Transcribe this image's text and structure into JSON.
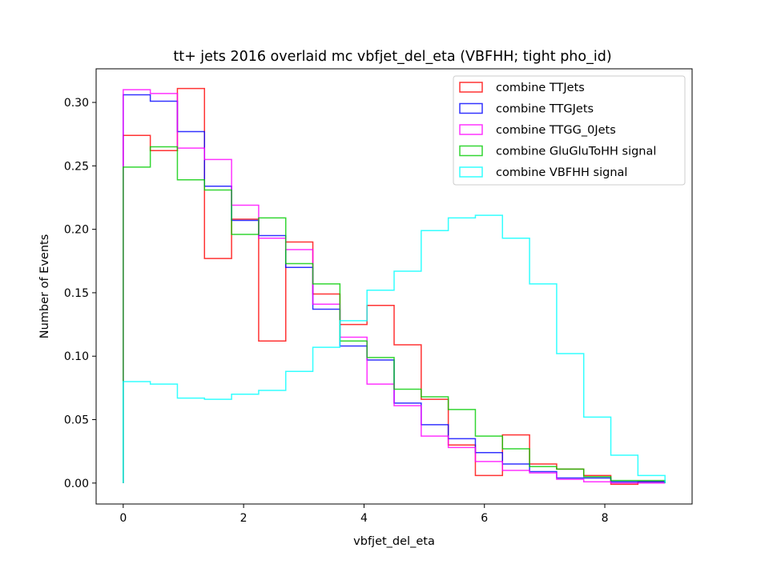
{
  "chart_data": {
    "type": "histogram-step",
    "title": "tt+ jets 2016 overlaid mc vbfjet_del_eta (VBFHH; tight pho_id)",
    "xlabel": "vbfjet_del_eta",
    "ylabel": "Number of Events",
    "xlim": [
      -0.45,
      9.45
    ],
    "ylim": [
      -0.0165,
      0.3265
    ],
    "xticks": [
      0,
      2,
      4,
      6,
      8
    ],
    "xtick_labels": [
      "0",
      "2",
      "4",
      "6",
      "8"
    ],
    "yticks": [
      0.0,
      0.05,
      0.1,
      0.15,
      0.2,
      0.25,
      0.3
    ],
    "ytick_labels": [
      "0.00",
      "0.05",
      "0.10",
      "0.15",
      "0.20",
      "0.25",
      "0.30"
    ],
    "legend_position": "top-right",
    "bin_edges": [
      0,
      0.45,
      0.9,
      1.35,
      1.8,
      2.25,
      2.7,
      3.15,
      3.6,
      4.05,
      4.5,
      4.95,
      5.4,
      5.85,
      6.3,
      6.75,
      7.2,
      7.65,
      8.1,
      8.55,
      9.0
    ],
    "series": [
      {
        "name": "combine TTJets",
        "color": "#ff0000",
        "values": [
          0.274,
          0.262,
          0.311,
          0.177,
          0.208,
          0.112,
          0.19,
          0.149,
          0.125,
          0.14,
          0.109,
          0.066,
          0.03,
          0.006,
          0.038,
          0.015,
          0.011,
          0.006,
          -0.001,
          0.001
        ]
      },
      {
        "name": "combine TTGJets",
        "color": "#0000ff",
        "values": [
          0.306,
          0.301,
          0.277,
          0.234,
          0.207,
          0.195,
          0.17,
          0.137,
          0.108,
          0.097,
          0.063,
          0.046,
          0.035,
          0.024,
          0.015,
          0.009,
          0.004,
          0.004,
          0.001,
          0.001
        ]
      },
      {
        "name": "combine TTGG_0Jets",
        "color": "#ff00ff",
        "values": [
          0.31,
          0.307,
          0.264,
          0.255,
          0.219,
          0.193,
          0.184,
          0.141,
          0.115,
          0.078,
          0.061,
          0.037,
          0.028,
          0.017,
          0.01,
          0.008,
          0.003,
          0.001,
          0.0,
          0.0
        ]
      },
      {
        "name": "combine GluGluToHH signal",
        "color": "#00cc00",
        "values": [
          0.249,
          0.265,
          0.239,
          0.231,
          0.196,
          0.209,
          0.173,
          0.157,
          0.112,
          0.099,
          0.074,
          0.068,
          0.058,
          0.037,
          0.027,
          0.013,
          0.011,
          0.005,
          0.002,
          0.002
        ]
      },
      {
        "name": "combine VBFHH signal",
        "color": "#00ffff",
        "values": [
          0.08,
          0.078,
          0.067,
          0.066,
          0.07,
          0.073,
          0.088,
          0.107,
          0.128,
          0.152,
          0.167,
          0.199,
          0.209,
          0.211,
          0.193,
          0.157,
          0.102,
          0.052,
          0.022,
          0.006
        ]
      }
    ]
  }
}
